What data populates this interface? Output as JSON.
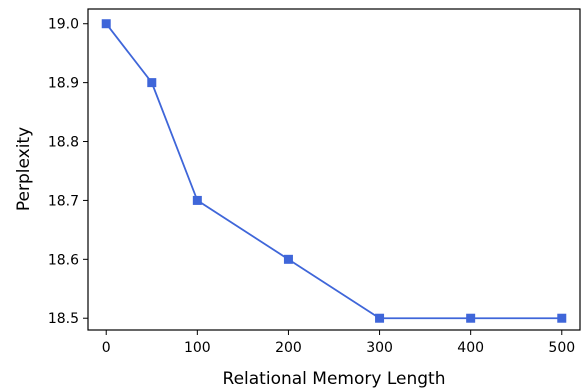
{
  "chart_data": {
    "type": "line",
    "title": "",
    "xlabel": "Relational Memory Length",
    "ylabel": "Perplexity",
    "xlim": [
      -20,
      520
    ],
    "ylim": [
      18.48,
      19.025
    ],
    "xticks": [
      0,
      100,
      200,
      300,
      400,
      500
    ],
    "xtick_labels": [
      "0",
      "100",
      "200",
      "300",
      "400",
      "500"
    ],
    "yticks": [
      18.5,
      18.6,
      18.7,
      18.8,
      18.9,
      19.0
    ],
    "ytick_labels": [
      "18.5",
      "18.6",
      "18.7",
      "18.8",
      "18.9",
      "19.0"
    ],
    "grid": false,
    "series": [
      {
        "color": "#3f66d9",
        "marker": "square",
        "x": [
          0,
          50,
          100,
          200,
          300,
          400,
          500
        ],
        "y": [
          19.0,
          18.9,
          18.7,
          18.6,
          18.5,
          18.5,
          18.5
        ]
      }
    ]
  }
}
